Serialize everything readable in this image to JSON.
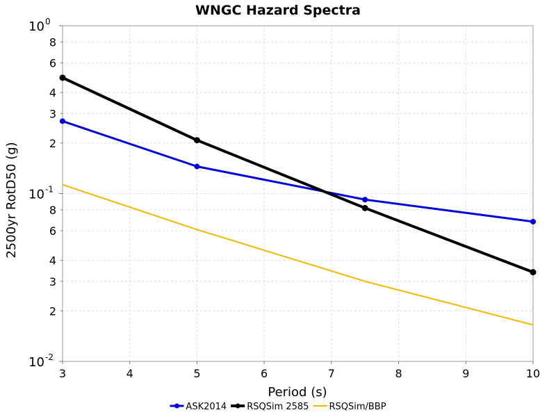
{
  "chart_data": {
    "type": "line",
    "title": "WNGC Hazard Spectra",
    "xlabel": "Period (s)",
    "ylabel": "2500yr RotD50 (g)",
    "xlim": [
      3,
      10
    ],
    "ylim": [
      0.01,
      1
    ],
    "yscale": "log",
    "x_ticks": [
      "3",
      "4",
      "5",
      "6",
      "7",
      "8",
      "9",
      "10"
    ],
    "y_major_ticks": [
      {
        "value": 1,
        "base": "10",
        "exp": "0"
      },
      {
        "value": 0.1,
        "base": "10",
        "exp": "-1"
      },
      {
        "value": 0.01,
        "base": "10",
        "exp": "-2"
      }
    ],
    "y_minor_ticks": [
      {
        "value": 0.8,
        "label": "8"
      },
      {
        "value": 0.6,
        "label": "6"
      },
      {
        "value": 0.4,
        "label": "4"
      },
      {
        "value": 0.3,
        "label": "3"
      },
      {
        "value": 0.2,
        "label": "2"
      },
      {
        "value": 0.08,
        "label": "8"
      },
      {
        "value": 0.06,
        "label": "6"
      },
      {
        "value": 0.04,
        "label": "4"
      },
      {
        "value": 0.03,
        "label": "3"
      },
      {
        "value": 0.02,
        "label": "2"
      }
    ],
    "grid": true,
    "legend_position": "bottom",
    "series": [
      {
        "name": "ASK2014",
        "color": "#0000dd",
        "markers": true,
        "x": [
          3,
          5,
          7.5,
          10
        ],
        "y": [
          0.27,
          0.145,
          0.092,
          0.068
        ]
      },
      {
        "name": "RSQSim 2585",
        "color": "#000000",
        "markers": true,
        "x": [
          3,
          5,
          7.5,
          10
        ],
        "y": [
          0.49,
          0.208,
          0.082,
          0.034
        ]
      },
      {
        "name": "RSQSim/BBP",
        "color": "#f5b800",
        "markers": false,
        "x": [
          3,
          5,
          7.5,
          10
        ],
        "y": [
          0.113,
          0.061,
          0.03,
          0.0165
        ]
      }
    ]
  }
}
